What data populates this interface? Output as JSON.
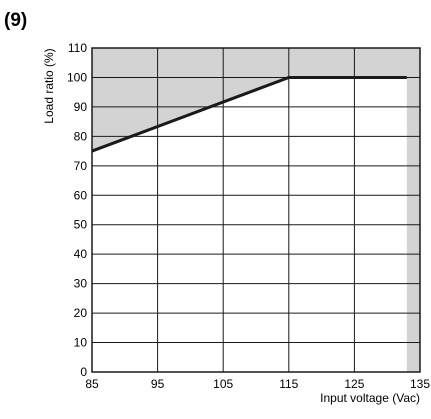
{
  "figure_label": "(9)",
  "chart_data": {
    "type": "line",
    "title": "",
    "xlabel": "Input voltage (Vac)",
    "ylabel": "Load ratio (%)",
    "xlim": [
      85,
      135
    ],
    "ylim": [
      0,
      110
    ],
    "x_ticks": [
      85,
      95,
      105,
      115,
      125,
      135
    ],
    "y_ticks": [
      0,
      10,
      20,
      30,
      40,
      50,
      60,
      70,
      80,
      90,
      100,
      110
    ],
    "grid": true,
    "series": [
      {
        "x": [
          85,
          115,
          133
        ],
        "y": [
          75,
          100,
          100
        ],
        "color": "#1a1a1a"
      }
    ],
    "shaded_region": {
      "description_color": "#d3d3d3",
      "above_curve": true,
      "right_x_from": 133
    },
    "colors": {
      "shade": "#d3d3d3",
      "grid": "#1a1a1a",
      "line": "#1a1a1a"
    }
  }
}
